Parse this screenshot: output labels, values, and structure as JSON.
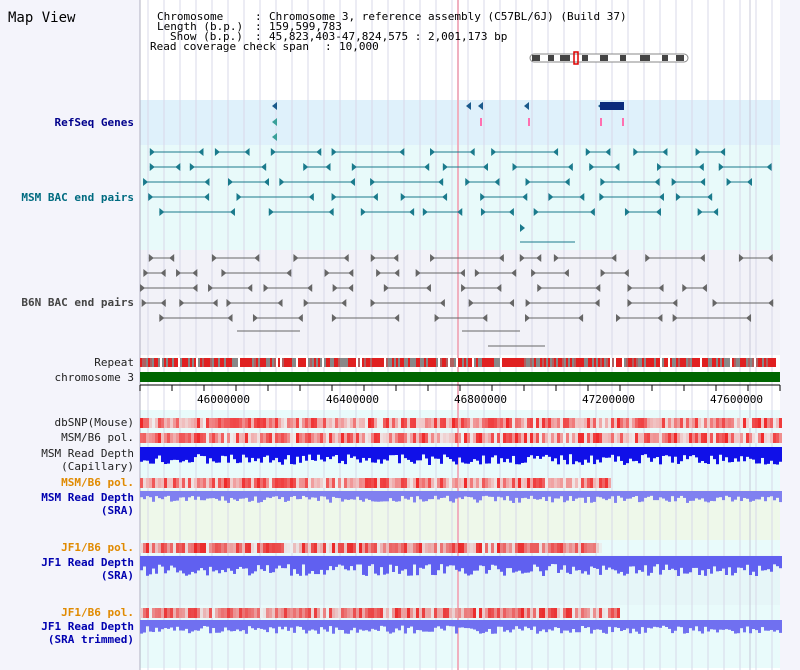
{
  "page_title": "Map View",
  "header": {
    "chromosome_label": "Chromosome",
    "chromosome_value": "Chromosome 3, reference assembly (C57BL/6J) (Build 37)",
    "length_label": "Length (b.p.)",
    "length_value": "159,599,783",
    "show_label": "Show (b.p.)",
    "show_value": "45,823,403-47,824,575 : 2,001,173 bp",
    "coverage_label": "Read coverage check span",
    "coverage_value": "10,000"
  },
  "tracks": {
    "refseq": "RefSeq Genes",
    "msm_bac": "MSM BAC end pairs",
    "b6n_bac": "B6N BAC end pairs",
    "repeat": "Repeat",
    "chromosome": "chromosome 3",
    "dbsnp": "dbSNP(Mouse)",
    "msm_b6_pol": "MSM/B6 pol.",
    "msm_depth_cap_1": "MSM Read Depth",
    "msm_depth_cap_2": "(Capillary)",
    "msm_b6_pol2": "MSM/B6 pol.",
    "msm_depth_sra_1": "MSM Read Depth",
    "msm_depth_sra_2": "(SRA)",
    "jf1_b6_pol": "JF1/B6 pol.",
    "jf1_depth_sra_1": "JF1 Read Depth",
    "jf1_depth_sra_2": "(SRA)",
    "jf1_b6_pol2": "JF1/B6 pol.",
    "jf1_depth_trim_1": "JF1 Read Depth",
    "jf1_depth_trim_2": "(SRA trimmed)"
  },
  "axis": {
    "ticks": [
      "46000000",
      "46400000",
      "46800000",
      "47200000",
      "47600000"
    ]
  },
  "colors": {
    "refseq_bg": "#dff1fb",
    "bac_bg": "#e8fafa",
    "b6n_bg": "#f2f2f8",
    "chrom_green": "#006600",
    "teal": "#1a7a8c",
    "gray": "#666666",
    "snp_red": "#e83030",
    "depth_blue": "#2020e0",
    "depth_light": "#8080f0"
  }
}
